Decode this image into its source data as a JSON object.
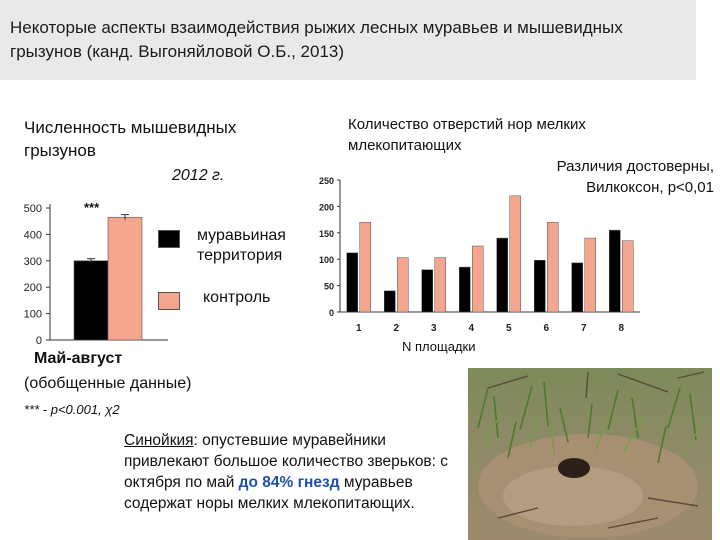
{
  "header": {
    "title": "Некоторые аспекты взаимодействия рыжих лесных муравьев и мышевидных грызунов (канд. Выгоняйловой О.Б., 2013)"
  },
  "left_panel": {
    "title": "Численность мышевидных грызунов",
    "year": "2012 г.",
    "significance_mark": "***",
    "legend": [
      {
        "label": "муравьиная территория",
        "color": "#000000"
      },
      {
        "label": "контроль",
        "color": "#f4a58e"
      }
    ],
    "period_bold": "Май-август",
    "period": "(обобщенные данные)",
    "stat_note": "*** - p<0.001, χ2"
  },
  "right_panel": {
    "title": "Количество отверстий нор мелких млекопитающих",
    "significance": "Различия достоверны, Вилкоксон, p<0,01",
    "xlabel": "N площадки"
  },
  "body_text": {
    "term": "Синойкия",
    "part1": ": опустевшие муравейники привлекают большое количество зверьков: с октября по май ",
    "highlight": "до 84% гнезд",
    "part2": " муравьев содержат норы мелких млекопитающих."
  },
  "chart_data": [
    {
      "type": "bar",
      "title": "Численность мышевидных грызунов",
      "categories": [
        "2012 г."
      ],
      "series": [
        {
          "name": "муравьиная территория",
          "values": [
            300
          ],
          "error": [
            8
          ],
          "color": "#000000"
        },
        {
          "name": "контроль",
          "values": [
            465
          ],
          "error": [
            10
          ],
          "color": "#f4a58e"
        }
      ],
      "yticks": [
        0,
        100,
        200,
        300,
        400,
        500
      ],
      "ylim": [
        0,
        500
      ],
      "annotation": "***",
      "grid": false
    },
    {
      "type": "bar",
      "title": "Количество отверстий нор мелких млекопитающих",
      "xlabel": "N площадки",
      "categories": [
        "1",
        "2",
        "3",
        "4",
        "5",
        "6",
        "7",
        "8"
      ],
      "series": [
        {
          "name": "муравьиная территория",
          "values": [
            112,
            40,
            80,
            85,
            140,
            98,
            93,
            155
          ],
          "color": "#000000"
        },
        {
          "name": "контроль",
          "values": [
            170,
            103,
            103,
            125,
            220,
            170,
            140,
            135
          ],
          "color": "#f4a58e"
        }
      ],
      "yticks": [
        0,
        50,
        100,
        150,
        200,
        250
      ],
      "ylim": [
        0,
        250
      ],
      "grid": false
    }
  ]
}
